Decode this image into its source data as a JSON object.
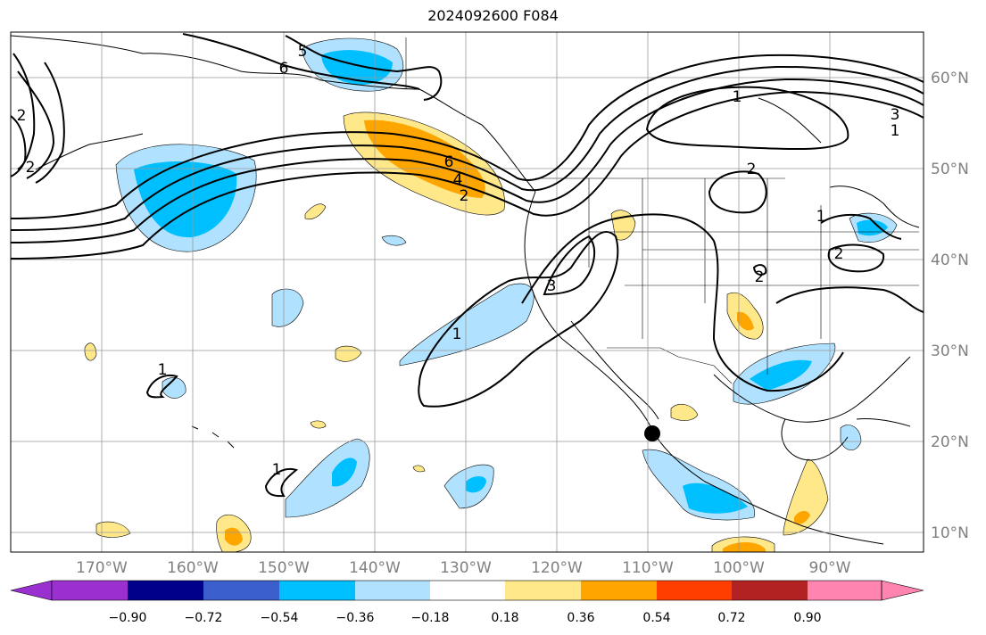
{
  "title": "2024092600 F084",
  "latitude_labels": [
    "60°N",
    "50°N",
    "40°N",
    "30°N",
    "20°N",
    "10°N"
  ],
  "longitude_labels": [
    "170°W",
    "160°W",
    "150°W",
    "140°W",
    "130°W",
    "120°W",
    "110°W",
    "100°W",
    "90°W"
  ],
  "colorbar": {
    "tick_labels": [
      "−0.90",
      "−0.72",
      "−0.54",
      "−0.36",
      "−0.18",
      "0.18",
      "0.36",
      "0.54",
      "0.72",
      "0.90"
    ],
    "colors": [
      "#9b30d0",
      "#00008b",
      "#3a5fcd",
      "#00bfff",
      "#b0e2ff",
      "#ffffff",
      "#ffe88a",
      "#ffa500",
      "#ff3e00",
      "#b22222",
      "#ff85b0"
    ]
  },
  "contour_labels": [
    "5",
    "6",
    "2",
    "1",
    "6",
    "4",
    "2",
    "3",
    "1",
    "3",
    "1",
    "2",
    "2",
    "1",
    "2",
    "2",
    "1",
    "1"
  ],
  "marker": {
    "name": "black-dot",
    "lat": 21,
    "lon": -109.5
  },
  "colors": {
    "gridline": "#999999",
    "contour": "#000000",
    "coastline": "#000000"
  }
}
